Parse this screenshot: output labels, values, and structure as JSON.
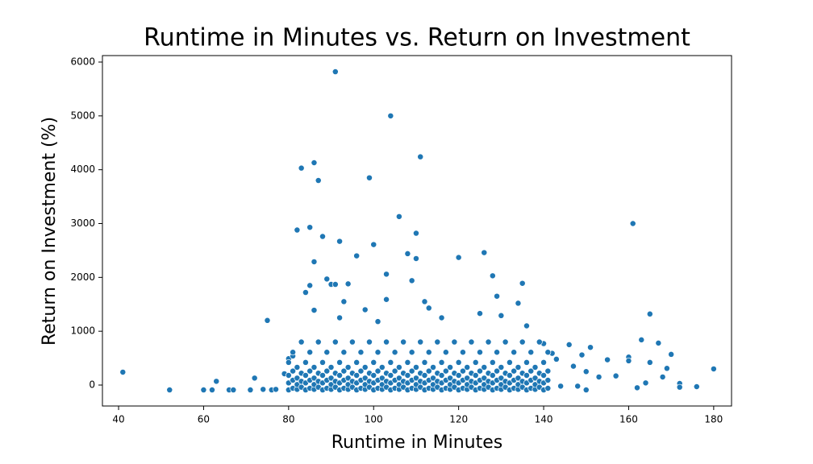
{
  "chart_data": {
    "type": "scatter",
    "title": "Runtime in Minutes vs. Return on Investment",
    "x_label": "Runtime in Minutes",
    "y_label": "Return on Investment (%)",
    "color": "#1f77b4",
    "xlim": [
      36.2,
      184.2
    ],
    "ylim": [
      -389,
      6120
    ],
    "xticks": [
      40,
      60,
      80,
      100,
      120,
      140,
      160,
      180
    ],
    "yticks": [
      0,
      1000,
      2000,
      3000,
      4000,
      5000,
      6000
    ],
    "x": [
      41,
      52,
      60,
      62,
      63,
      66,
      67,
      71,
      72,
      74,
      75,
      76,
      77,
      79,
      80,
      81,
      82,
      83,
      84,
      85,
      85,
      86,
      86,
      87,
      88,
      89,
      90,
      91,
      91,
      92,
      94,
      96,
      99,
      100,
      103,
      104,
      106,
      108,
      109,
      110,
      110,
      111,
      120,
      126,
      128,
      129,
      130,
      134,
      135,
      136,
      161,
      165,
      163,
      167,
      170,
      169,
      168,
      172,
      172,
      176,
      180,
      160,
      160,
      162,
      164,
      165,
      157,
      155,
      153,
      151,
      150,
      149,
      147,
      146,
      144,
      143,
      142,
      140,
      150,
      148,
      103,
      93,
      98,
      86,
      113,
      112,
      125,
      116,
      92,
      101,
      80,
      80,
      80,
      80,
      81,
      81,
      81,
      81,
      82,
      82,
      82,
      82,
      83,
      83,
      83,
      83,
      84,
      84,
      84,
      84,
      85,
      85,
      85,
      85,
      86,
      86,
      86,
      86,
      87,
      87,
      87,
      87,
      88,
      88,
      88,
      88,
      89,
      89,
      89,
      89,
      90,
      90,
      90,
      90,
      91,
      91,
      91,
      91,
      92,
      92,
      92,
      92,
      93,
      93,
      93,
      93,
      94,
      94,
      94,
      94,
      95,
      95,
      95,
      95,
      96,
      96,
      96,
      96,
      97,
      97,
      97,
      97,
      98,
      98,
      98,
      98,
      99,
      99,
      99,
      99,
      100,
      100,
      100,
      100,
      101,
      101,
      101,
      101,
      102,
      102,
      102,
      102,
      103,
      103,
      103,
      103,
      104,
      104,
      104,
      104,
      105,
      105,
      105,
      105,
      106,
      106,
      106,
      106,
      107,
      107,
      107,
      107,
      108,
      108,
      108,
      108,
      109,
      109,
      109,
      109,
      110,
      110,
      110,
      110,
      111,
      111,
      111,
      111,
      112,
      112,
      112,
      112,
      113,
      113,
      113,
      113,
      114,
      114,
      114,
      114,
      115,
      115,
      115,
      115,
      116,
      116,
      116,
      116,
      117,
      117,
      117,
      117,
      118,
      118,
      118,
      118,
      119,
      119,
      119,
      119,
      120,
      120,
      120,
      120,
      121,
      121,
      121,
      121,
      122,
      122,
      122,
      122,
      123,
      123,
      123,
      123,
      124,
      124,
      124,
      124,
      125,
      125,
      125,
      125,
      126,
      126,
      126,
      126,
      127,
      127,
      127,
      127,
      128,
      128,
      128,
      128,
      129,
      129,
      129,
      129,
      130,
      130,
      130,
      130,
      131,
      131,
      131,
      131,
      132,
      132,
      132,
      132,
      133,
      133,
      133,
      133,
      134,
      134,
      134,
      134,
      135,
      135,
      135,
      135,
      136,
      136,
      136,
      136,
      137,
      137,
      137,
      137,
      138,
      138,
      138,
      138,
      139,
      139,
      139,
      139,
      140,
      140,
      140,
      140,
      141,
      141,
      141,
      141
    ],
    "values": [
      240,
      -90,
      -90,
      -90,
      70,
      -90,
      -90,
      -90,
      130,
      -80,
      1200,
      -90,
      -80,
      210,
      490,
      540,
      2880,
      4030,
      1720,
      2930,
      1850,
      4130,
      2290,
      3800,
      2760,
      1970,
      1870,
      5820,
      1870,
      2670,
      1880,
      2400,
      3850,
      2610,
      2060,
      5000,
      3130,
      2440,
      1940,
      2820,
      2350,
      4240,
      2370,
      2460,
      2030,
      1650,
      1290,
      1520,
      1890,
      1100,
      3000,
      1320,
      840,
      780,
      570,
      310,
      150,
      30,
      -40,
      -30,
      300,
      520,
      450,
      -50,
      40,
      420,
      170,
      470,
      150,
      700,
      250,
      560,
      350,
      750,
      -20,
      480,
      590,
      770,
      -90,
      -20,
      1590,
      1550,
      1400,
      1390,
      1430,
      1550,
      1330,
      1250,
      1250,
      1180,
      -90,
      40,
      180,
      420,
      -60,
      90,
      260,
      610,
      -80,
      10,
      130,
      330,
      -40,
      70,
      220,
      800,
      -90,
      40,
      180,
      420,
      -60,
      90,
      260,
      610,
      -80,
      10,
      130,
      330,
      -40,
      70,
      220,
      800,
      -90,
      40,
      180,
      420,
      -60,
      90,
      260,
      610,
      -80,
      10,
      130,
      330,
      -40,
      70,
      220,
      800,
      -90,
      40,
      180,
      420,
      -60,
      90,
      260,
      610,
      -80,
      10,
      130,
      330,
      -40,
      70,
      220,
      800,
      -90,
      40,
      180,
      420,
      -60,
      90,
      260,
      610,
      -80,
      10,
      130,
      330,
      -40,
      70,
      220,
      800,
      -90,
      40,
      180,
      420,
      -60,
      90,
      260,
      610,
      -80,
      10,
      130,
      330,
      -40,
      70,
      220,
      800,
      -90,
      40,
      180,
      420,
      -60,
      90,
      260,
      610,
      -80,
      10,
      130,
      330,
      -40,
      70,
      220,
      800,
      -90,
      40,
      180,
      420,
      -60,
      90,
      260,
      610,
      -80,
      10,
      130,
      330,
      -40,
      70,
      220,
      800,
      -90,
      40,
      180,
      420,
      -60,
      90,
      260,
      610,
      -80,
      10,
      130,
      330,
      -40,
      70,
      220,
      800,
      -90,
      40,
      180,
      420,
      -60,
      90,
      260,
      610,
      -80,
      10,
      130,
      330,
      -40,
      70,
      220,
      800,
      -90,
      40,
      180,
      420,
      -60,
      90,
      260,
      610,
      -80,
      10,
      130,
      330,
      -40,
      70,
      220,
      800,
      -90,
      40,
      180,
      420,
      -60,
      90,
      260,
      610,
      -80,
      10,
      130,
      330,
      -40,
      70,
      220,
      800,
      -90,
      40,
      180,
      420,
      -60,
      90,
      260,
      610,
      -80,
      10,
      130,
      330,
      -40,
      70,
      220,
      800,
      -90,
      40,
      180,
      420,
      -60,
      90,
      260,
      610,
      -80,
      10,
      130,
      330,
      -40,
      70,
      220,
      800,
      -90,
      40,
      180,
      420,
      -60,
      90,
      260,
      610,
      -80,
      10,
      130,
      330,
      -40,
      70,
      220,
      800,
      -90,
      40,
      180,
      420,
      -60,
      90,
      260,
      610
    ]
  }
}
